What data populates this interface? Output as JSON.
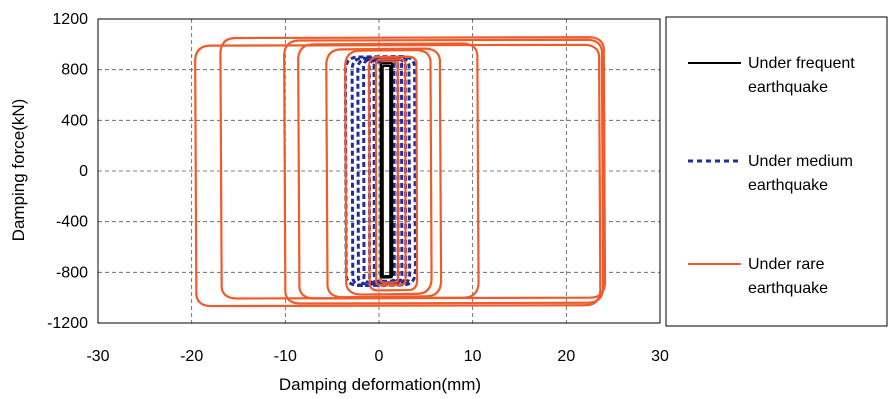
{
  "chart_data": {
    "type": "line",
    "title": "",
    "xlabel": "Damping deformation(mm)",
    "ylabel": "Damping force(kN)",
    "xlim": [
      -30,
      30
    ],
    "ylim": [
      -1200,
      1200
    ],
    "xticks": [
      -30,
      -20,
      -10,
      0,
      10,
      20,
      30
    ],
    "yticks": [
      -1200,
      -800,
      -400,
      0,
      400,
      800,
      1200
    ],
    "x_tick_labels": [
      "-30",
      "-20",
      "-10",
      "0",
      "10",
      "20",
      "30"
    ],
    "y_tick_labels": [
      "-1200",
      "-800",
      "-400",
      "0",
      "400",
      "800",
      "1200"
    ],
    "grid": true,
    "legend_position": "right",
    "series": [
      {
        "name": "Under frequent earthquake",
        "legend_lines": [
          "Under frequent",
          "earthquake"
        ],
        "color": "#000000",
        "style": "solid",
        "loops": [
          {
            "xmin": 0.2,
            "xmax": 1.4,
            "top": 850,
            "bottom": -840
          },
          {
            "xmin": 0.4,
            "xmax": 1.2,
            "top": 830,
            "bottom": -830
          }
        ]
      },
      {
        "name": "Under medium earthquake",
        "legend_lines": [
          "Under medium",
          "earthquake"
        ],
        "color": "#1f2d9e",
        "style": "dashed",
        "loops": [
          {
            "xmin": -3.5,
            "xmax": 3.8,
            "top": 900,
            "bottom": -900
          },
          {
            "xmin": -2.8,
            "xmax": 3.2,
            "top": 890,
            "bottom": -900
          },
          {
            "xmin": -2.2,
            "xmax": 2.8,
            "top": 880,
            "bottom": -890
          },
          {
            "xmin": -1.6,
            "xmax": 2.4,
            "top": 880,
            "bottom": -880
          },
          {
            "xmin": -1.0,
            "xmax": 2.0,
            "top": 870,
            "bottom": -880
          },
          {
            "xmin": -0.5,
            "xmax": 1.6,
            "top": 860,
            "bottom": -870
          }
        ]
      },
      {
        "name": "Under rare earthquake",
        "legend_lines": [
          "Under rare",
          "earthquake"
        ],
        "color": "#f15a29",
        "style": "solid",
        "loops": [
          {
            "xmin": -19.5,
            "xmax": 23.5,
            "top": 990,
            "bottom": -1060
          },
          {
            "xmin": -16.8,
            "xmax": 24.0,
            "top": 1050,
            "bottom": -1000
          },
          {
            "xmin": -10.0,
            "xmax": 23.8,
            "top": 1030,
            "bottom": -1040
          },
          {
            "xmin": -8.5,
            "xmax": 10.5,
            "top": 1000,
            "bottom": -1000
          },
          {
            "xmin": -5.5,
            "xmax": 6.5,
            "top": 960,
            "bottom": -990
          },
          {
            "xmin": -3.5,
            "xmax": 5.5,
            "top": 950,
            "bottom": -970
          },
          {
            "xmin": -1.0,
            "xmax": 4.0,
            "top": 900,
            "bottom": -940
          },
          {
            "xmin": -0.3,
            "xmax": 2.8,
            "top": 880,
            "bottom": -900
          },
          {
            "xmin": 0.2,
            "xmax": 2.0,
            "top": 860,
            "bottom": -880
          }
        ]
      }
    ]
  }
}
